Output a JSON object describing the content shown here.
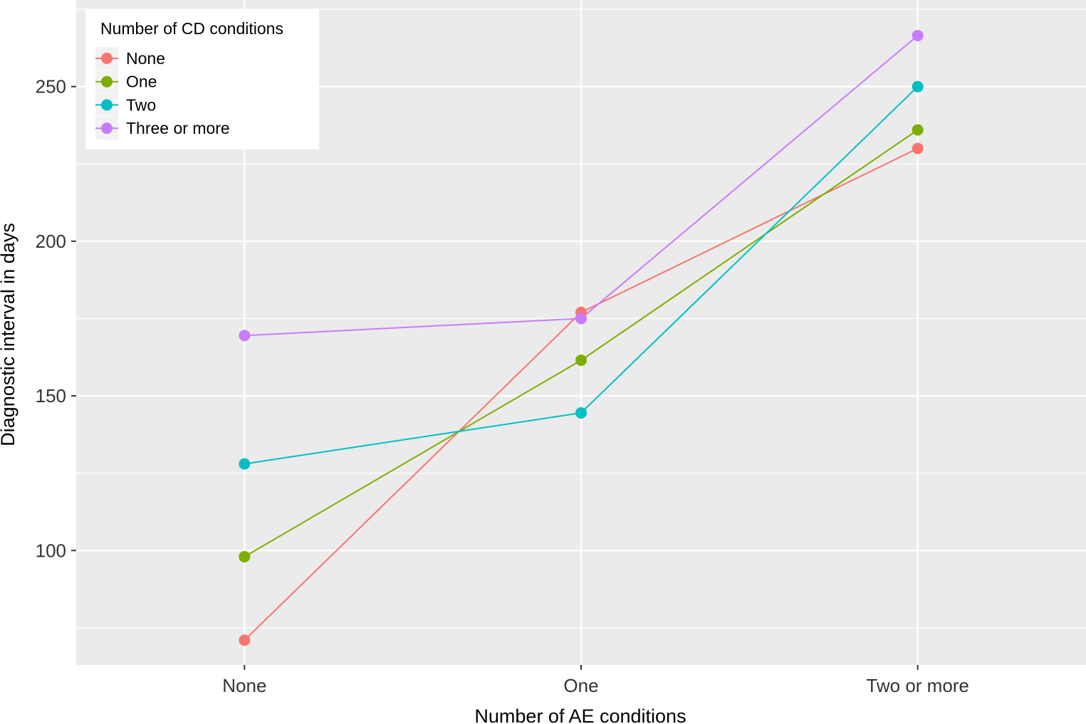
{
  "chart_data": {
    "type": "line",
    "xlabel": "Number of AE conditions",
    "ylabel": "Diagnostic interval in days",
    "categories": [
      "None",
      "One",
      "Two or more"
    ],
    "ylim": [
      63,
      278
    ],
    "yticks": [
      100,
      150,
      200,
      250
    ],
    "grid": true,
    "legend": {
      "title": "Number of CD conditions",
      "position": "top-left"
    },
    "series": [
      {
        "name": "None",
        "color": "#F8766D",
        "values": [
          71,
          177,
          230
        ]
      },
      {
        "name": "One",
        "color": "#7CAE00",
        "values": [
          98,
          161.5,
          236
        ]
      },
      {
        "name": "Two",
        "color": "#00BFC4",
        "values": [
          128,
          144.5,
          250
        ]
      },
      {
        "name": "Three or more",
        "color": "#C77CFF",
        "values": [
          169.5,
          175,
          266.5
        ]
      }
    ]
  }
}
